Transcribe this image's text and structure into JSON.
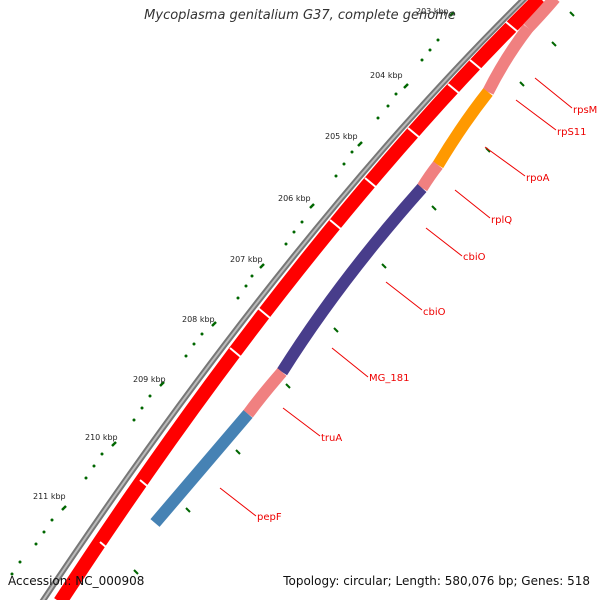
{
  "title": "Mycoplasma genitalium G37, complete genome",
  "footer": {
    "accession_label": "Accession:",
    "accession": "NC_000908",
    "topology_label": "Topology:",
    "topology": "circular",
    "length_label": "Length:",
    "length": "580,076 bp",
    "genes_label": "Genes:",
    "genes": "518"
  },
  "kbp_ticks": [
    "203 kbp",
    "204 kbp",
    "205 kbp",
    "206 kbp",
    "207 kbp",
    "208 kbp",
    "209 kbp",
    "210 kbp",
    "211 kbp"
  ],
  "genes": [
    "rpsM",
    "rpS11",
    "rpoA",
    "rplQ",
    "cbiO",
    "cbiO",
    "MG_181",
    "truA",
    "pepF"
  ],
  "colors": {
    "forward_cds": "#ff0000",
    "reverse_cds": "#f08080",
    "rpoA": "#ff9900",
    "cbiO_region": "#483d8b",
    "pepF": "#4682b4",
    "backbone": "#777777",
    "ticks": "#006600",
    "gene_label": "#ee0000"
  }
}
